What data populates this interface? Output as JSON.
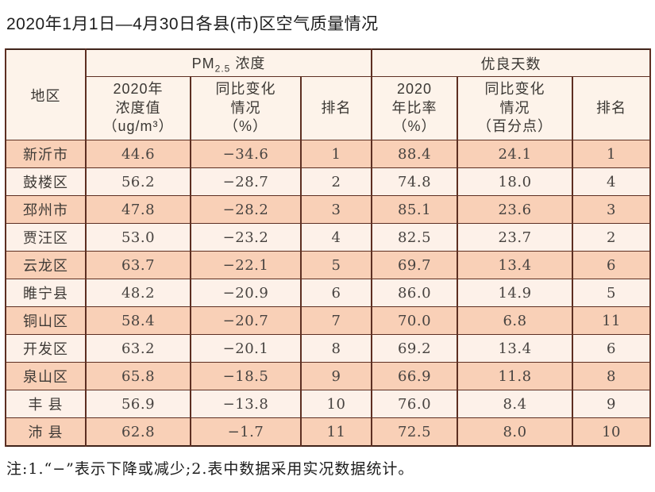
{
  "title": "2020年1月1日—4月30日各县(市)区空气质量情况",
  "note": "注:1.“−”表示下降或减少;2.表中数据采用实况数据统计。",
  "colors": {
    "row_accent": "#f9d0b7",
    "row_light": "#fdf1e9",
    "header_bg": "#fdf3ea",
    "inner_border": "#5d2f22",
    "outer_border": "#40241b",
    "text": "#3a3733"
  },
  "table": {
    "corner_header": "地区",
    "group_headers": {
      "pm25_prefix": "PM",
      "pm25_sub": "2.5",
      "pm25_suffix": " 浓度",
      "good_days": "优良天数"
    },
    "sub_headers": {
      "pm25_value": "2020年\n浓度值\n（ug/m³）",
      "pm25_change": "同比变化\n情况\n（%）",
      "pm25_rank": "排名",
      "ratio": "2020\n年比率\n（%）",
      "ratio_change": "同比变化\n情况\n（百分点）",
      "ratio_rank": "排名"
    },
    "rows": [
      {
        "region": "新沂市",
        "pm25_value": "44.6",
        "pm25_change": "−34.6",
        "pm25_rank": "1",
        "ratio": "88.4",
        "ratio_change": "24.1",
        "ratio_rank": "1"
      },
      {
        "region": "鼓楼区",
        "pm25_value": "56.2",
        "pm25_change": "−28.7",
        "pm25_rank": "2",
        "ratio": "74.8",
        "ratio_change": "18.0",
        "ratio_rank": "4"
      },
      {
        "region": "邳州市",
        "pm25_value": "47.8",
        "pm25_change": "−28.2",
        "pm25_rank": "3",
        "ratio": "85.1",
        "ratio_change": "23.6",
        "ratio_rank": "3"
      },
      {
        "region": "贾汪区",
        "pm25_value": "53.0",
        "pm25_change": "−23.2",
        "pm25_rank": "4",
        "ratio": "82.5",
        "ratio_change": "23.7",
        "ratio_rank": "2"
      },
      {
        "region": "云龙区",
        "pm25_value": "63.7",
        "pm25_change": "−22.1",
        "pm25_rank": "5",
        "ratio": "69.7",
        "ratio_change": "13.4",
        "ratio_rank": "6"
      },
      {
        "region": "睢宁县",
        "pm25_value": "48.2",
        "pm25_change": "−20.9",
        "pm25_rank": "6",
        "ratio": "86.0",
        "ratio_change": "14.9",
        "ratio_rank": "5"
      },
      {
        "region": "铜山区",
        "pm25_value": "58.4",
        "pm25_change": "−20.7",
        "pm25_rank": "7",
        "ratio": "70.0",
        "ratio_change": "6.8",
        "ratio_rank": "11"
      },
      {
        "region": "开发区",
        "pm25_value": "63.2",
        "pm25_change": "−20.1",
        "pm25_rank": "8",
        "ratio": "69.2",
        "ratio_change": "13.4",
        "ratio_rank": "6"
      },
      {
        "region": "泉山区",
        "pm25_value": "65.8",
        "pm25_change": "−18.5",
        "pm25_rank": "9",
        "ratio": "66.9",
        "ratio_change": "11.8",
        "ratio_rank": "8"
      },
      {
        "region": "丰 县",
        "pm25_value": "56.9",
        "pm25_change": "−13.8",
        "pm25_rank": "10",
        "ratio": "76.0",
        "ratio_change": "8.4",
        "ratio_rank": "9"
      },
      {
        "region": "沛 县",
        "pm25_value": "62.8",
        "pm25_change": "−1.7",
        "pm25_rank": "11",
        "ratio": "72.5",
        "ratio_change": "8.0",
        "ratio_rank": "10"
      }
    ]
  }
}
